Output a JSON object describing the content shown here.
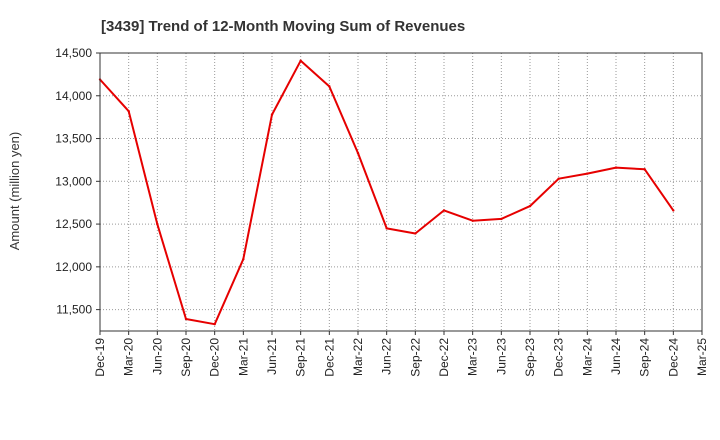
{
  "chart_data": {
    "type": "line",
    "title": "[3439]  Trend of 12-Month Moving Sum of Revenues",
    "xlabel": "",
    "ylabel": "Amount (million yen)",
    "categories": [
      "Dec-19",
      "Mar-20",
      "Jun-20",
      "Sep-20",
      "Dec-20",
      "Mar-21",
      "Jun-21",
      "Sep-21",
      "Dec-21",
      "Mar-22",
      "Jun-22",
      "Sep-22",
      "Dec-22",
      "Mar-23",
      "Jun-23",
      "Sep-23",
      "Dec-23",
      "Mar-24",
      "Jun-24",
      "Sep-24",
      "Dec-24",
      "Mar-25"
    ],
    "yticks": [
      11500,
      12000,
      12500,
      13000,
      13500,
      14000,
      14500
    ],
    "ytick_labels": [
      "11,500",
      "12,000",
      "12,500",
      "13,000",
      "13,500",
      "14,000",
      "14,500"
    ],
    "ylim": [
      11250,
      14500
    ],
    "grid": true,
    "series": [
      {
        "color": "#e60000",
        "values": [
          14190,
          13820,
          12500,
          11390,
          11330,
          12090,
          13780,
          14410,
          14110,
          13330,
          12450,
          12390,
          12660,
          12540,
          12560,
          12710,
          13030,
          13090,
          13160,
          13140,
          12660,
          null
        ]
      }
    ]
  }
}
